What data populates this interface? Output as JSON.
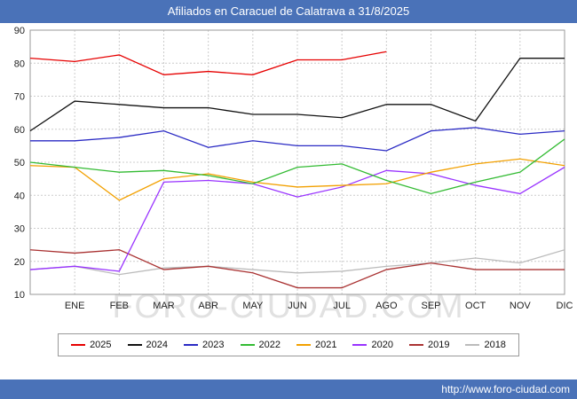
{
  "title": "Afiliados en Caracuel de Calatrava a 31/8/2025",
  "footer": {
    "url": "http://www.foro-ciudad.com"
  },
  "watermark": "FORO-CIUDAD.COM",
  "colors": {
    "header_bg": "#4a72b8",
    "grid": "#cccccc",
    "plot_border": "#999999",
    "text": "#222222"
  },
  "chart_data": {
    "type": "line",
    "title": "Afiliados en Caracuel de Calatrava a 31/8/2025",
    "xlabel": "",
    "ylabel": "",
    "ylim": [
      10,
      90
    ],
    "yticks": [
      10,
      20,
      30,
      40,
      50,
      60,
      70,
      80,
      90
    ],
    "grid": true,
    "legend_position": "bottom",
    "categories": [
      "ENE",
      "FEB",
      "MAR",
      "ABR",
      "MAY",
      "JUN",
      "JUL",
      "AGO",
      "SEP",
      "OCT",
      "NOV",
      "DIC"
    ],
    "note": "Each series begins with a value plotted on the y-axis (start) followed by monthly values; 2025 runs only through AGO.",
    "series": [
      {
        "name": "2025",
        "color": "#e60000",
        "start": 81.5,
        "values": [
          80.5,
          82.5,
          76.5,
          77.5,
          76.5,
          81,
          81,
          83.5
        ]
      },
      {
        "name": "2024",
        "color": "#111111",
        "start": 59.5,
        "values": [
          68.5,
          67.5,
          66.5,
          66.5,
          64.5,
          64.5,
          63.5,
          67.5,
          67.5,
          62.5,
          81.5,
          81.5
        ]
      },
      {
        "name": "2023",
        "color": "#2a2ac4",
        "start": 56.5,
        "values": [
          56.5,
          57.5,
          59.5,
          54.5,
          56.5,
          55,
          55,
          53.5,
          59.5,
          60.5,
          58.5,
          59.5
        ]
      },
      {
        "name": "2022",
        "color": "#33bb33",
        "start": 50,
        "values": [
          48.5,
          47,
          47.5,
          46,
          43.5,
          48.5,
          49.5,
          44.5,
          40.5,
          44,
          47,
          57
        ]
      },
      {
        "name": "2021",
        "color": "#f2a000",
        "start": 49,
        "values": [
          48.5,
          38.5,
          45,
          46.5,
          44,
          42.5,
          43,
          43.5,
          47,
          49.5,
          51,
          49
        ]
      },
      {
        "name": "2020",
        "color": "#9933ff",
        "start": 17.5,
        "values": [
          18.5,
          17,
          44,
          44.5,
          43.5,
          39.5,
          42.5,
          47.5,
          46.5,
          43,
          40.5,
          48.5
        ]
      },
      {
        "name": "2019",
        "color": "#aa3333",
        "start": 23.5,
        "values": [
          22.5,
          23.5,
          17.5,
          18.5,
          16.5,
          12,
          12,
          17.5,
          19.5,
          17.5,
          17.5,
          17.5
        ]
      },
      {
        "name": "2018",
        "color": "#bbbbbb",
        "start": 17.5,
        "values": [
          18.5,
          16,
          18,
          18.5,
          17.5,
          16.5,
          17,
          18.5,
          19.5,
          21,
          19.5,
          23.5
        ]
      }
    ]
  }
}
